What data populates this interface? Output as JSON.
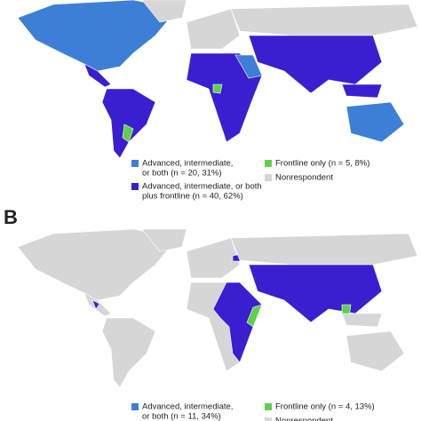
{
  "panels": [
    {
      "legend": [
        {
          "lines": [
            "Advanced, intermediate,",
            "or both (n = 20, 31%)"
          ],
          "color": "#3d7fd6"
        },
        {
          "lines": [
            "Advanced, intermediate, or both",
            "plus frontline (n = 40, 62%)"
          ],
          "color": "#3a1fd0"
        },
        {
          "lines": [
            "Frontline only (n = 5, 8%)"
          ],
          "color": "#5fd04a"
        },
        {
          "lines": [
            "Nonrespondent"
          ],
          "color": "#d6d6d6"
        }
      ]
    },
    {
      "label": "B",
      "legend": [
        {
          "lines": [
            "Advanced, intermediate,",
            "or both (n = 11, 34%)"
          ],
          "color": "#3d7fd6"
        },
        {
          "lines": [
            "Frontline only (n = 4, 13%)"
          ],
          "color": "#5fd04a"
        },
        {
          "lines": [
            "Nonrespondent"
          ],
          "color": "#d6d6d6"
        }
      ]
    }
  ]
}
